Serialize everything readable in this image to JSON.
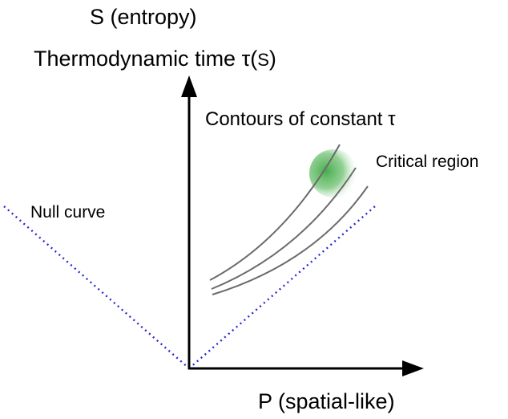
{
  "labels": {
    "s_axis": "S (entropy)",
    "tau_axis_main": "Thermodynamic time τ(",
    "tau_axis_arg": "S",
    "tau_axis_close": ")",
    "contours": "Contours of constant τ",
    "critical_region": "Critical region",
    "null_curve": "Null curve",
    "p_axis": "P (spatial-like)"
  },
  "colors": {
    "axis": "#000000",
    "contour": "#6b6b6b",
    "null_curve": "#2a2ad0",
    "critical_region": "#3fa843"
  },
  "contour_count": 3
}
